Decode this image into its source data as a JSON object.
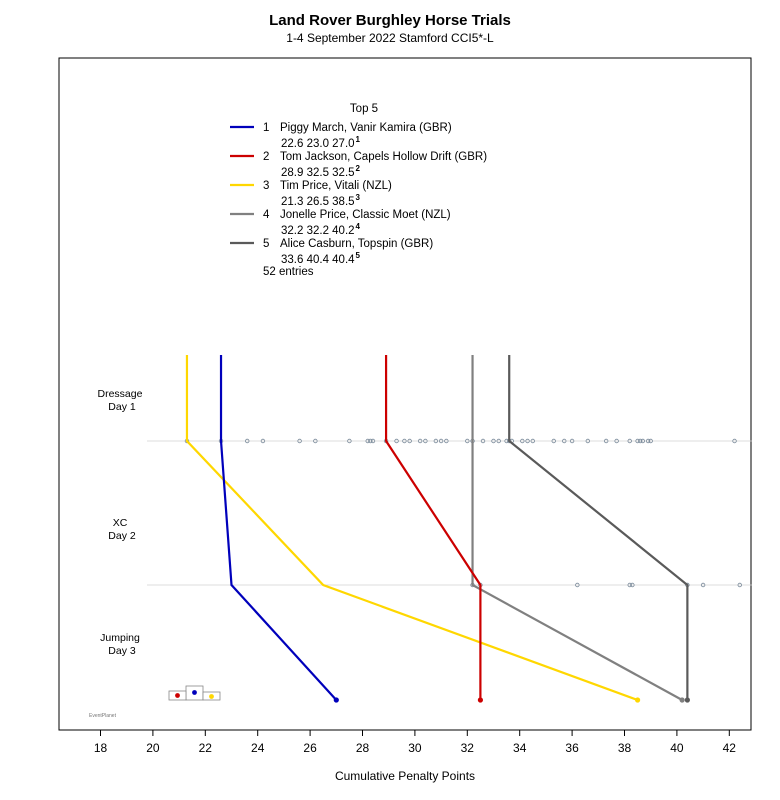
{
  "chart_data": {
    "type": "line",
    "title": "Land Rover Burghley Horse Trials",
    "subtitle": "1-4 September 2022 Stamford CCI5*-L",
    "xlabel": "Cumulative Penalty Points",
    "xlim": [
      16.5,
      42.5
    ],
    "xticks": [
      18,
      20,
      22,
      24,
      26,
      28,
      30,
      32,
      34,
      36,
      38,
      40,
      42
    ],
    "stages": [
      {
        "name": "Dressage",
        "day": "Day 1"
      },
      {
        "name": "XC",
        "day": "Day 2"
      },
      {
        "name": "Jumping",
        "day": "Day 3"
      }
    ],
    "legend_title": "Top 5",
    "entries_note": "52 entries",
    "logo_text": "EventPlanet",
    "series": [
      {
        "rank": "1",
        "name": "Piggy March,  Vanir Kamira  (GBR)",
        "values": [
          22.6,
          23.0,
          27.0
        ],
        "scores_label": "22.6  23.0  27.0",
        "place_sup": "1",
        "color": "#0000bb"
      },
      {
        "rank": "2",
        "name": "Tom Jackson,  Capels Hollow Drift  (GBR)",
        "values": [
          28.9,
          32.5,
          32.5
        ],
        "scores_label": "28.9  32.5  32.5",
        "place_sup": "2",
        "color": "#cc0000"
      },
      {
        "rank": "3",
        "name": "Tim Price,  Vitali  (NZL)",
        "values": [
          21.3,
          26.5,
          38.5
        ],
        "scores_label": "21.3  26.5  38.5",
        "place_sup": "3",
        "color": "#ffd700"
      },
      {
        "rank": "4",
        "name": "Jonelle Price,  Classic Moet  (NZL)",
        "values": [
          32.2,
          32.2,
          40.2
        ],
        "scores_label": "32.2  32.2  40.2",
        "place_sup": "4",
        "color": "#808080"
      },
      {
        "rank": "5",
        "name": "Alice Casburn,  Topspin  (GBR)",
        "values": [
          33.6,
          40.4,
          40.4
        ],
        "scores_label": "33.6  40.4  40.4",
        "place_sup": "5",
        "color": "#5a5a5a"
      }
    ],
    "field_scores": {
      "dressage": [
        21.3,
        22.6,
        23.6,
        24.2,
        25.6,
        26.2,
        27.5,
        28.2,
        28.3,
        28.4,
        28.9,
        29.3,
        29.6,
        29.8,
        30.2,
        30.4,
        30.8,
        31.0,
        31.2,
        32.0,
        32.2,
        32.6,
        33.0,
        33.2,
        33.5,
        33.6,
        33.7,
        34.1,
        34.3,
        34.5,
        35.3,
        35.7,
        36.0,
        36.6,
        37.3,
        37.7,
        38.2,
        38.5,
        38.6,
        38.7,
        38.9,
        39.0,
        42.2
      ],
      "xc": [
        32.2,
        32.5,
        36.2,
        38.2,
        38.3,
        40.4,
        41.0,
        42.4
      ]
    }
  }
}
